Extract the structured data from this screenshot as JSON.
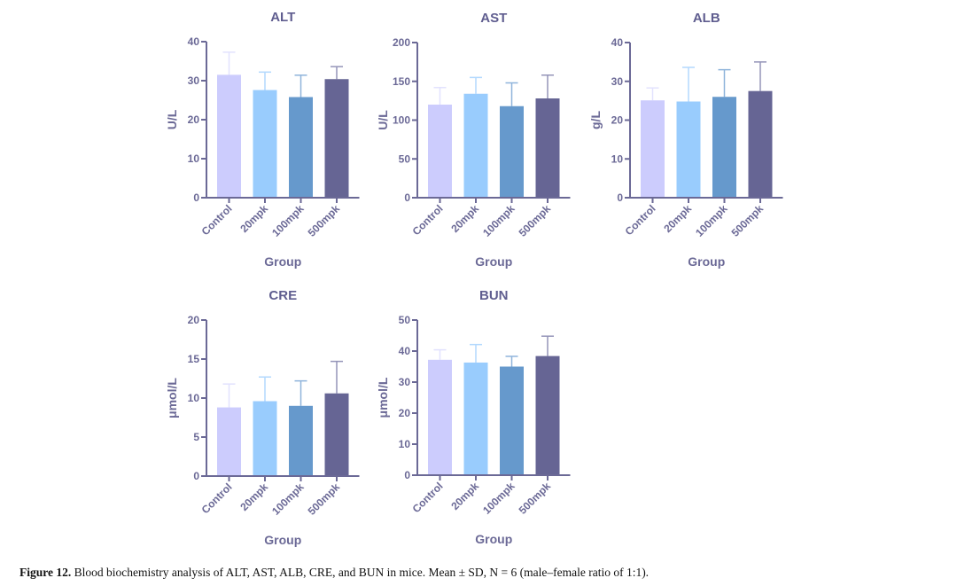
{
  "caption": {
    "label": "Figure 12.",
    "text": "Blood biochemistry analysis of ALT, AST, ALB, CRE, and BUN in mice. Mean ± SD, N = 6 (male–female ratio of 1:1)."
  },
  "colors": {
    "axis": "#6b6996",
    "title": "#5f5d8f",
    "bars": [
      "#ccccfd",
      "#99ccfd",
      "#6699cc",
      "#666594"
    ],
    "errorbars": [
      "#e2e2fe",
      "#b3d9fe",
      "#8fb4db",
      "#9494b8"
    ]
  },
  "chart_data": [
    {
      "type": "bar",
      "title": "ALT",
      "xlabel": "Group",
      "ylabel": "U/L",
      "categories": [
        "Control",
        "20mpk",
        "100mpk",
        "500mpk"
      ],
      "values": [
        31.5,
        27.6,
        25.8,
        30.4
      ],
      "error_upper": [
        37.3,
        32.2,
        31.4,
        33.6
      ],
      "ylim": [
        0,
        40
      ],
      "yticks": [
        0,
        10,
        20,
        30,
        40
      ],
      "grid": false
    },
    {
      "type": "bar",
      "title": "AST",
      "xlabel": "Group",
      "ylabel": "U/L",
      "categories": [
        "Control",
        "20mpk",
        "100mpk",
        "500mpk"
      ],
      "values": [
        120,
        134,
        118,
        128
      ],
      "error_upper": [
        142,
        155,
        148,
        158
      ],
      "ylim": [
        0,
        200
      ],
      "yticks": [
        0,
        50,
        100,
        150,
        200
      ],
      "grid": false
    },
    {
      "type": "bar",
      "title": "ALB",
      "xlabel": "Group",
      "ylabel": "g/L",
      "categories": [
        "Control",
        "20mpk",
        "100mpk",
        "500mpk"
      ],
      "values": [
        25.1,
        24.8,
        26.0,
        27.5
      ],
      "error_upper": [
        28.3,
        33.6,
        33.0,
        35.0
      ],
      "ylim": [
        0,
        40
      ],
      "yticks": [
        0,
        10,
        20,
        30,
        40
      ],
      "grid": false
    },
    {
      "type": "bar",
      "title": "CRE",
      "xlabel": "Group",
      "ylabel": "μmol/L",
      "categories": [
        "Control",
        "20mpk",
        "100mpk",
        "500mpk"
      ],
      "values": [
        8.8,
        9.6,
        9.0,
        10.6
      ],
      "error_upper": [
        11.8,
        12.7,
        12.2,
        14.7
      ],
      "ylim": [
        0,
        20
      ],
      "yticks": [
        0,
        5,
        10,
        15,
        20
      ],
      "grid": false
    },
    {
      "type": "bar",
      "title": "BUN",
      "xlabel": "Group",
      "ylabel": "μmol/L",
      "categories": [
        "Control",
        "20mpk",
        "100mpk",
        "500mpk"
      ],
      "values": [
        37.2,
        36.3,
        35.0,
        38.4
      ],
      "error_upper": [
        40.4,
        42.1,
        38.3,
        44.8
      ],
      "ylim": [
        0,
        50
      ],
      "yticks": [
        0,
        10,
        20,
        30,
        40,
        50
      ],
      "grid": false
    }
  ]
}
